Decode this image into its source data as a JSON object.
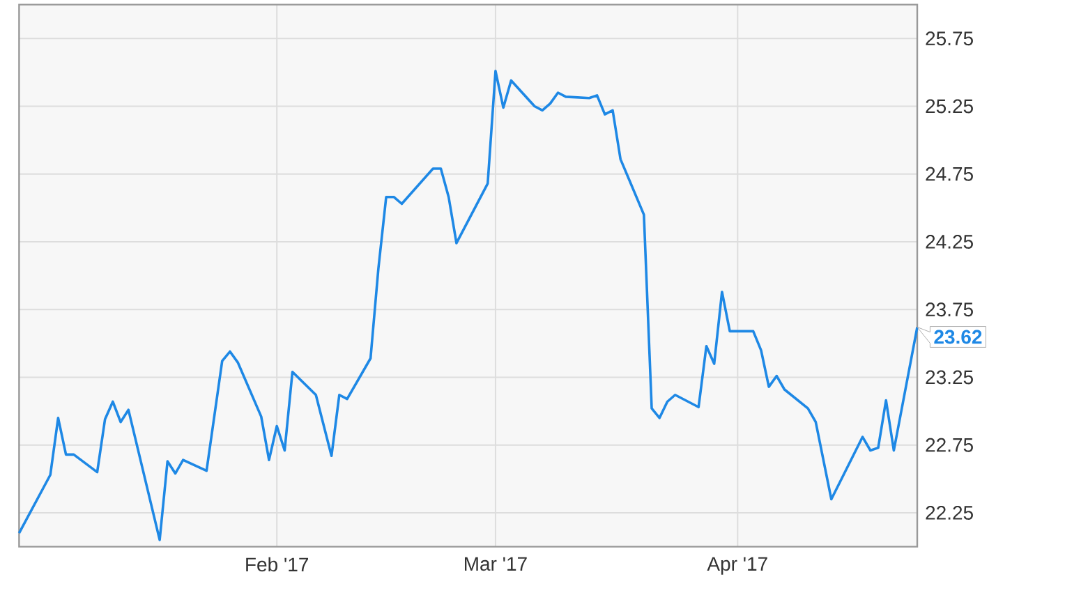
{
  "chart_data": {
    "type": "line",
    "x": [
      "2016-12-30",
      "2017-01-03",
      "2017-01-04",
      "2017-01-05",
      "2017-01-06",
      "2017-01-09",
      "2017-01-10",
      "2017-01-11",
      "2017-01-12",
      "2017-01-13",
      "2017-01-17",
      "2017-01-18",
      "2017-01-19",
      "2017-01-20",
      "2017-01-23",
      "2017-01-25",
      "2017-01-26",
      "2017-01-27",
      "2017-01-30",
      "2017-01-31",
      "2017-02-01",
      "2017-02-02",
      "2017-02-03",
      "2017-02-06",
      "2017-02-08",
      "2017-02-09",
      "2017-02-10",
      "2017-02-13",
      "2017-02-14",
      "2017-02-15",
      "2017-02-16",
      "2017-02-17",
      "2017-02-21",
      "2017-02-22",
      "2017-02-23",
      "2017-02-24",
      "2017-02-28",
      "2017-03-01",
      "2017-03-02",
      "2017-03-03",
      "2017-03-06",
      "2017-03-07",
      "2017-03-08",
      "2017-03-09",
      "2017-03-10",
      "2017-03-13",
      "2017-03-14",
      "2017-03-15",
      "2017-03-16",
      "2017-03-17",
      "2017-03-20",
      "2017-03-21",
      "2017-03-22",
      "2017-03-23",
      "2017-03-24",
      "2017-03-27",
      "2017-03-28",
      "2017-03-29",
      "2017-03-30",
      "2017-03-31",
      "2017-04-03",
      "2017-04-04",
      "2017-04-05",
      "2017-04-06",
      "2017-04-07",
      "2017-04-10",
      "2017-04-11",
      "2017-04-13",
      "2017-04-17",
      "2017-04-18",
      "2017-04-19",
      "2017-04-20",
      "2017-04-21",
      "2017-04-24"
    ],
    "values": [
      22.1,
      22.53,
      22.95,
      22.68,
      22.68,
      22.55,
      22.94,
      23.07,
      22.92,
      23.01,
      22.05,
      22.63,
      22.54,
      22.64,
      22.56,
      23.37,
      23.44,
      23.36,
      22.96,
      22.64,
      22.89,
      22.71,
      23.29,
      23.12,
      22.67,
      23.12,
      23.09,
      23.39,
      24.05,
      24.58,
      24.58,
      24.53,
      24.79,
      24.79,
      24.58,
      24.24,
      24.68,
      25.51,
      25.24,
      25.44,
      25.25,
      25.22,
      25.27,
      25.35,
      25.32,
      25.31,
      25.33,
      25.19,
      25.22,
      24.86,
      24.45,
      23.02,
      22.95,
      23.07,
      23.12,
      23.03,
      23.48,
      23.35,
      23.88,
      23.59,
      23.59,
      23.45,
      23.18,
      23.26,
      23.16,
      23.02,
      22.92,
      22.35,
      22.81,
      22.71,
      22.73,
      23.08,
      22.71,
      23.62
    ],
    "color": "#1e88e5",
    "xlim": [
      "2016-12-30",
      "2017-04-24"
    ],
    "xticks": [
      {
        "value": "2017-02-01",
        "label": "Feb '17"
      },
      {
        "value": "2017-03-01",
        "label": "Mar '17"
      },
      {
        "value": "2017-04-01",
        "label": "Apr '17"
      }
    ],
    "ylim": [
      22,
      26
    ],
    "yticks": [
      22.25,
      22.75,
      23.25,
      23.75,
      24.25,
      24.75,
      25.25,
      25.75
    ],
    "grid": true,
    "annotations": [
      {
        "text": "23.62",
        "x": "2017-04-24",
        "y": 23.62
      }
    ]
  }
}
